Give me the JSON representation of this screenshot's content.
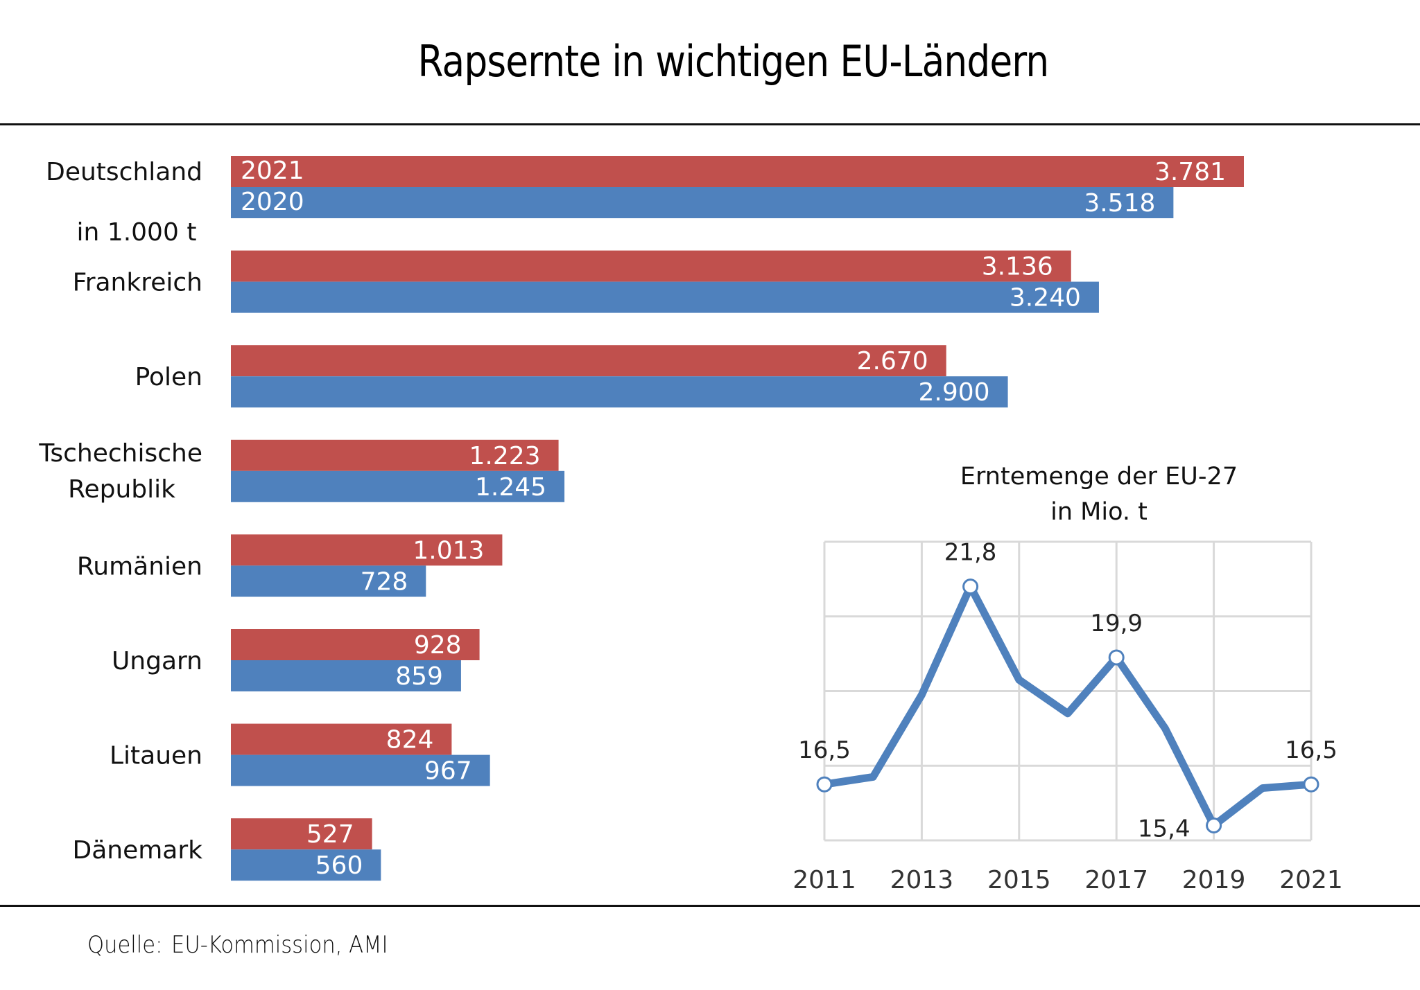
{
  "title": "Rapsernte in wichtigen EU-Ländern",
  "source": {
    "label": "Quelle:",
    "text": "EU-Kommission, AMI"
  },
  "colors": {
    "y2021": "#c0504d",
    "y2020": "#4f81bd",
    "grid": "#d9d9d9",
    "line": "#4f81bd"
  },
  "chart_data": [
    {
      "type": "bar",
      "orientation": "horizontal",
      "unit_label": "in 1.000 t",
      "categories": [
        "Deutschland",
        "Frankreich",
        "Polen",
        "Tschechische Republik",
        "Rumänien",
        "Ungarn",
        "Litauen",
        "Dänemark"
      ],
      "category_lines": [
        [
          "Deutschland"
        ],
        [
          "Frankreich"
        ],
        [
          "Polen"
        ],
        [
          "Tschechische",
          "Republik"
        ],
        [
          "Rumänien"
        ],
        [
          "Ungarn"
        ],
        [
          "Litauen"
        ],
        [
          "Dänemark"
        ]
      ],
      "series": [
        {
          "name": "2021",
          "color": "#c0504d",
          "values": [
            3781,
            3136,
            2670,
            1223,
            1013,
            928,
            824,
            527
          ],
          "labels": [
            "3.781",
            "3.136",
            "2.670",
            "1.223",
            "1.013",
            "928",
            "824",
            "527"
          ]
        },
        {
          "name": "2020",
          "color": "#4f81bd",
          "values": [
            3518,
            3240,
            2900,
            1245,
            728,
            859,
            967,
            560
          ],
          "labels": [
            "3.518",
            "3.240",
            "2.900",
            "1.245",
            "728",
            "859",
            "967",
            "560"
          ]
        }
      ],
      "xlim": [
        0,
        3781
      ],
      "grid": false,
      "legend": "inline-first-bar"
    },
    {
      "type": "line",
      "title": "Erntemenge der EU-27",
      "subtitle": "in Mio. t",
      "x": [
        2011,
        2012,
        2013,
        2014,
        2015,
        2016,
        2017,
        2018,
        2019,
        2020,
        2021
      ],
      "series": [
        {
          "name": "EU-27",
          "values": [
            16.5,
            16.7,
            18.9,
            21.8,
            19.3,
            18.4,
            19.9,
            18.0,
            15.4,
            16.4,
            16.5
          ]
        }
      ],
      "x_tick_labels": [
        "2011",
        "2013",
        "2015",
        "2017",
        "2019",
        "2021"
      ],
      "annotations": [
        {
          "x": 2011,
          "label": "16,5",
          "pos": "above"
        },
        {
          "x": 2014,
          "label": "21,8",
          "pos": "above"
        },
        {
          "x": 2017,
          "label": "19,9",
          "pos": "above"
        },
        {
          "x": 2019,
          "label": "15,4",
          "pos": "left"
        },
        {
          "x": 2021,
          "label": "16,5",
          "pos": "above"
        }
      ],
      "ylim": [
        15,
        23
      ],
      "y_grid_step": 2,
      "grid": true,
      "xlabel": "",
      "ylabel": ""
    }
  ]
}
